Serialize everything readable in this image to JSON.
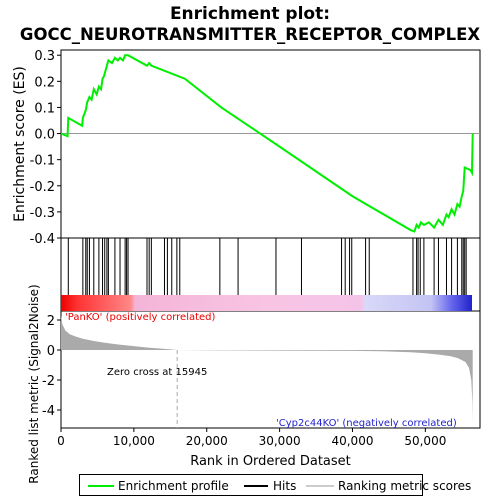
{
  "title_line1": "Enrichment plot:",
  "title_line2": "GOCC_NEUROTRANSMITTER_RECEPTOR_COMPLEX",
  "colors": {
    "enrichment_line": "#00ee00",
    "hits": "#000000",
    "metric_fill": "#aaaaaa",
    "zero_cross": "#aaaaaa",
    "positive_label": "#ee0000",
    "negative_label": "#2222cc",
    "heat_pos": "#ee0000",
    "heat_neg": "#2222ee"
  },
  "legend": {
    "enrichment": "Enrichment profile",
    "hits": "Hits",
    "ranking": "Ranking metric scores"
  },
  "chart_data": [
    {
      "type": "line",
      "name": "enrichment-profile",
      "ylabel": "Enrichment score (ES)",
      "xlim": [
        0,
        57500
      ],
      "ylim": [
        -0.4,
        0.32
      ],
      "yticks": [
        0.3,
        0.2,
        0.1,
        0.0,
        -0.1,
        -0.2,
        -0.3,
        -0.4
      ],
      "ytick_labels": [
        "0.3",
        "0.2",
        "0.1",
        "0.0",
        "-0.1",
        "-0.2",
        "-0.3",
        "-0.4"
      ],
      "grid": false,
      "x": [
        0,
        900,
        1000,
        2900,
        3000,
        3400,
        3600,
        3900,
        4200,
        4500,
        4900,
        5200,
        5500,
        5700,
        5900,
        6000,
        6300,
        6500,
        7000,
        7400,
        7800,
        8100,
        8500,
        8800,
        9000,
        9200,
        11800,
        12100,
        12400,
        17000,
        22000,
        30000,
        40000,
        48000,
        48500,
        48800,
        49100,
        49400,
        49800,
        50500,
        51200,
        51800,
        52400,
        52900,
        53200,
        53600,
        54000,
        54400,
        54700,
        55000,
        55200,
        55400,
        56200,
        56400,
        56500
      ],
      "y": [
        0.0,
        -0.01,
        0.06,
        0.03,
        0.06,
        0.09,
        0.12,
        0.14,
        0.13,
        0.17,
        0.15,
        0.18,
        0.17,
        0.21,
        0.22,
        0.23,
        0.26,
        0.28,
        0.27,
        0.29,
        0.28,
        0.29,
        0.28,
        0.3,
        0.3,
        0.3,
        0.26,
        0.27,
        0.26,
        0.21,
        0.1,
        -0.05,
        -0.24,
        -0.37,
        -0.375,
        -0.35,
        -0.36,
        -0.34,
        -0.35,
        -0.34,
        -0.36,
        -0.33,
        -0.35,
        -0.31,
        -0.32,
        -0.29,
        -0.31,
        -0.27,
        -0.28,
        -0.24,
        -0.22,
        -0.13,
        -0.14,
        -0.15,
        0.0
      ]
    },
    {
      "type": "scatter",
      "name": "hits",
      "x": [
        1000,
        3000,
        3400,
        3600,
        3900,
        4500,
        5200,
        5700,
        6000,
        6300,
        6500,
        7400,
        8100,
        8800,
        9000,
        9200,
        11800,
        12100,
        12400,
        14200,
        14600,
        15200,
        15900,
        16300,
        21800,
        24300,
        29500,
        33000,
        38500,
        39000,
        39600,
        39900,
        41800,
        42300,
        48300,
        48800,
        49000,
        49300,
        49800,
        51200,
        51800,
        52900,
        53600,
        54400,
        55000,
        55200,
        55400,
        55600
      ]
    },
    {
      "type": "area",
      "name": "ranked-list-metric",
      "ylabel": "Ranked list metric (Signal2Noise)",
      "xlabel": "Rank in Ordered Dataset",
      "xlim": [
        0,
        57500
      ],
      "ylim": [
        -5.2,
        2.6
      ],
      "yticks": [
        2,
        0,
        -2,
        -4
      ],
      "ytick_labels": [
        "2",
        "0",
        "-2",
        "-4"
      ],
      "xticks": [
        0,
        10000,
        20000,
        30000,
        40000,
        50000
      ],
      "xtick_labels": [
        "0",
        "10,000",
        "20,000",
        "30,000",
        "40,000",
        "50,000"
      ],
      "x": [
        0,
        200,
        600,
        1200,
        2000,
        3000,
        4500,
        6000,
        8000,
        10000,
        12000,
        14000,
        15945,
        20000,
        30000,
        40000,
        44000,
        48000,
        50000,
        52000,
        53500,
        54500,
        55500,
        56000,
        56300,
        56450,
        56500
      ],
      "y": [
        2.3,
        1.7,
        1.3,
        1.05,
        0.9,
        0.75,
        0.6,
        0.48,
        0.36,
        0.26,
        0.16,
        0.08,
        0.0,
        -0.02,
        -0.04,
        -0.06,
        -0.08,
        -0.15,
        -0.22,
        -0.32,
        -0.42,
        -0.55,
        -0.8,
        -1.2,
        -2.0,
        -3.4,
        -4.8
      ],
      "annotations": [
        "Zero cross at 15945",
        "'PanKO' (positively correlated)",
        "'Cyp2c44KO' (negatively correlated)"
      ],
      "zero_cross": 15945
    }
  ]
}
